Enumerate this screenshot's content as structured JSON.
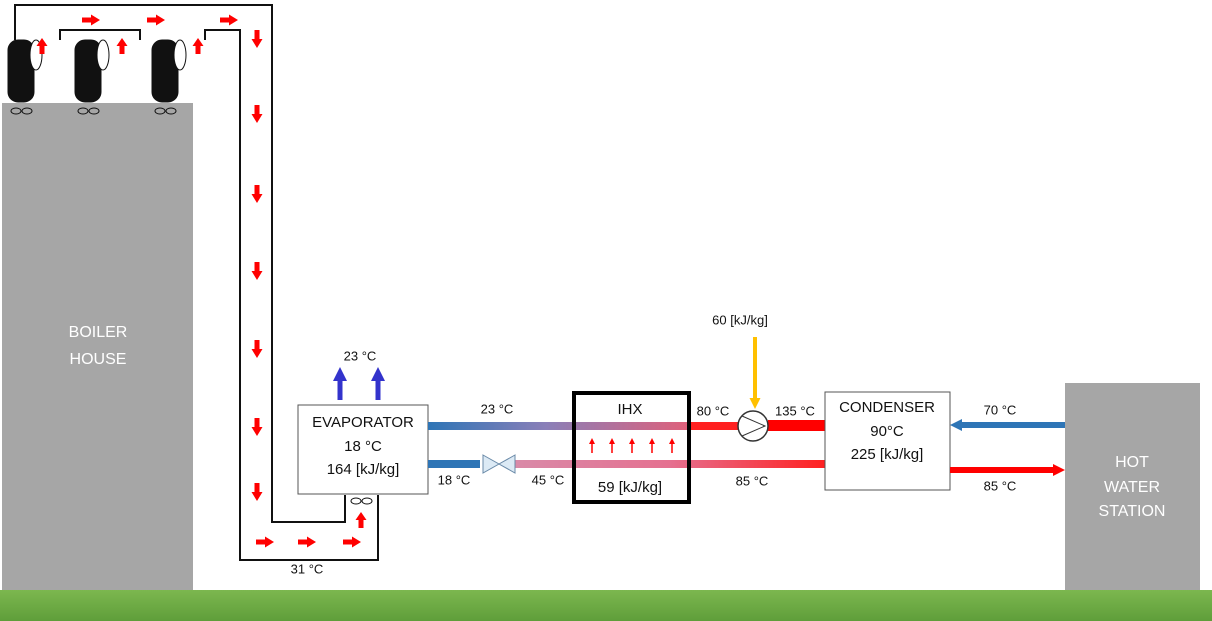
{
  "boiler_house": {
    "label": [
      "BOILER",
      "HOUSE"
    ]
  },
  "evaporator": {
    "title": "EVAPORATOR",
    "temperature": "18 °C",
    "enthalpy": "164 [kJ/kg]",
    "outlet_air": "23 °C"
  },
  "ihx": {
    "title": "IHX",
    "heat": "59 [kJ/kg]"
  },
  "compressor": {
    "work": "60 [kJ/kg]"
  },
  "condenser": {
    "title": "CONDENSER",
    "temperature": "90°C",
    "enthalpy": "225 [kJ/kg]"
  },
  "hot_water_station": {
    "label": [
      "HOT",
      "WATER",
      "STATION"
    ]
  },
  "labels": {
    "duct_return": "31 °C",
    "evaporator_out": "23 °C",
    "evaporator_in": "18 °C",
    "valve_out": "45 °C",
    "ihx_out": "80 °C",
    "compressor_out": "135 °C",
    "condenser_out": "85 °C",
    "water_in": "70 °C",
    "water_out": "85 °C"
  }
}
